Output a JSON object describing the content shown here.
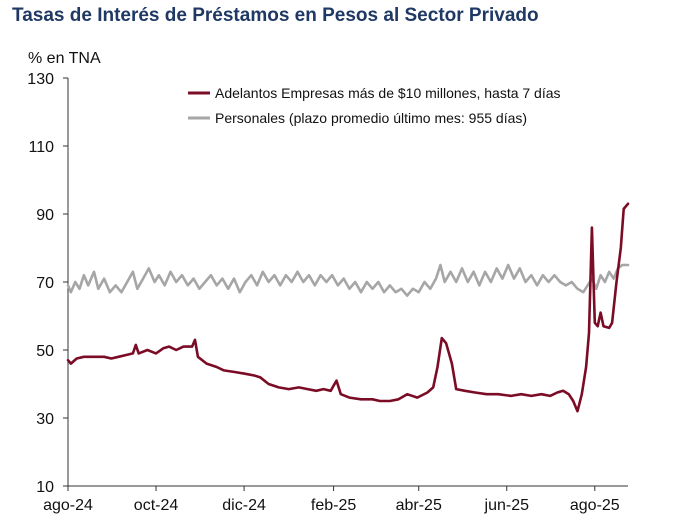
{
  "chart_data": {
    "type": "line",
    "title": "Tasas de Interés de Préstamos en Pesos al Sector Privado",
    "ylabel": "% en TNA",
    "ylim": [
      10,
      130
    ],
    "yticks": [
      10,
      30,
      50,
      70,
      90,
      110,
      130
    ],
    "xticks": [
      "ago-24",
      "oct-24",
      "dic-24",
      "feb-25",
      "abr-25",
      "jun-25",
      "ago-25"
    ],
    "legend_position": "top-right",
    "grid": false,
    "series": [
      {
        "name": "Adelantos Empresas más de $10 millones, hasta 7 días",
        "color": "#7b0c25",
        "points": [
          [
            "2024-08-01",
            47
          ],
          [
            "2024-08-03",
            46
          ],
          [
            "2024-08-07",
            47.5
          ],
          [
            "2024-08-12",
            48
          ],
          [
            "2024-08-19",
            48
          ],
          [
            "2024-08-26",
            48
          ],
          [
            "2024-08-31",
            47.5
          ],
          [
            "2024-09-05",
            48
          ],
          [
            "2024-09-10",
            48.5
          ],
          [
            "2024-09-15",
            49
          ],
          [
            "2024-09-17",
            51.5
          ],
          [
            "2024-09-19",
            49
          ],
          [
            "2024-09-25",
            50
          ],
          [
            "2024-10-01",
            49
          ],
          [
            "2024-10-06",
            50.5
          ],
          [
            "2024-10-10",
            51
          ],
          [
            "2024-10-15",
            50
          ],
          [
            "2024-10-20",
            51
          ],
          [
            "2024-10-26",
            51
          ],
          [
            "2024-10-28",
            53
          ],
          [
            "2024-10-30",
            48
          ],
          [
            "2024-11-05",
            46
          ],
          [
            "2024-11-12",
            45
          ],
          [
            "2024-11-17",
            44
          ],
          [
            "2024-11-25",
            43.5
          ],
          [
            "2024-12-02",
            43
          ],
          [
            "2024-12-08",
            42.5
          ],
          [
            "2024-12-12",
            42
          ],
          [
            "2024-12-18",
            40
          ],
          [
            "2024-12-25",
            39
          ],
          [
            "2025-01-01",
            38.5
          ],
          [
            "2025-01-08",
            39
          ],
          [
            "2025-01-14",
            38.5
          ],
          [
            "2025-01-20",
            38
          ],
          [
            "2025-01-25",
            38.5
          ],
          [
            "2025-01-30",
            38
          ],
          [
            "2025-02-03",
            41
          ],
          [
            "2025-02-06",
            37
          ],
          [
            "2025-02-12",
            36
          ],
          [
            "2025-02-20",
            35.5
          ],
          [
            "2025-02-28",
            35.5
          ],
          [
            "2025-03-05",
            35
          ],
          [
            "2025-03-12",
            35
          ],
          [
            "2025-03-18",
            35.5
          ],
          [
            "2025-03-24",
            37
          ],
          [
            "2025-03-31",
            36
          ],
          [
            "2025-04-07",
            37.5
          ],
          [
            "2025-04-11",
            39
          ],
          [
            "2025-04-14",
            45
          ],
          [
            "2025-04-17",
            53.5
          ],
          [
            "2025-04-20",
            52
          ],
          [
            "2025-04-24",
            46
          ],
          [
            "2025-04-27",
            38.5
          ],
          [
            "2025-05-03",
            38
          ],
          [
            "2025-05-10",
            37.5
          ],
          [
            "2025-05-18",
            37
          ],
          [
            "2025-05-26",
            37
          ],
          [
            "2025-06-04",
            36.5
          ],
          [
            "2025-06-11",
            37
          ],
          [
            "2025-06-18",
            36.5
          ],
          [
            "2025-06-25",
            37
          ],
          [
            "2025-07-01",
            36.5
          ],
          [
            "2025-07-06",
            37.5
          ],
          [
            "2025-07-10",
            38
          ],
          [
            "2025-07-14",
            37
          ],
          [
            "2025-07-17",
            35
          ],
          [
            "2025-07-20",
            32
          ],
          [
            "2025-07-23",
            37
          ],
          [
            "2025-07-26",
            45
          ],
          [
            "2025-07-28",
            55
          ],
          [
            "2025-07-30",
            86
          ],
          [
            "2025-08-01",
            58
          ],
          [
            "2025-08-03",
            57
          ],
          [
            "2025-08-05",
            61
          ],
          [
            "2025-08-07",
            57
          ],
          [
            "2025-08-11",
            56.5
          ],
          [
            "2025-08-13",
            58
          ],
          [
            "2025-08-16",
            70
          ],
          [
            "2025-08-19",
            80
          ],
          [
            "2025-08-21",
            91.5
          ],
          [
            "2025-08-24",
            93
          ]
        ]
      },
      {
        "name": "Personales (plazo promedio último mes: 955 días)",
        "color": "#a6a6a6",
        "points": [
          [
            "2024-08-01",
            69
          ],
          [
            "2024-08-03",
            67
          ],
          [
            "2024-08-06",
            70
          ],
          [
            "2024-08-09",
            68
          ],
          [
            "2024-08-12",
            72
          ],
          [
            "2024-08-15",
            69
          ],
          [
            "2024-08-19",
            73
          ],
          [
            "2024-08-22",
            68
          ],
          [
            "2024-08-26",
            71
          ],
          [
            "2024-08-30",
            67
          ],
          [
            "2024-09-03",
            69
          ],
          [
            "2024-09-07",
            67
          ],
          [
            "2024-09-11",
            70
          ],
          [
            "2024-09-15",
            73
          ],
          [
            "2024-09-18",
            68
          ],
          [
            "2024-09-22",
            71
          ],
          [
            "2024-09-26",
            74
          ],
          [
            "2024-09-30",
            70
          ],
          [
            "2024-10-03",
            72
          ],
          [
            "2024-10-07",
            69
          ],
          [
            "2024-10-11",
            73
          ],
          [
            "2024-10-15",
            70
          ],
          [
            "2024-10-19",
            72
          ],
          [
            "2024-10-23",
            69
          ],
          [
            "2024-10-27",
            71
          ],
          [
            "2024-10-31",
            68
          ],
          [
            "2024-11-04",
            70
          ],
          [
            "2024-11-08",
            72
          ],
          [
            "2024-11-12",
            69
          ],
          [
            "2024-11-16",
            71
          ],
          [
            "2024-11-20",
            68
          ],
          [
            "2024-11-24",
            71
          ],
          [
            "2024-11-28",
            67
          ],
          [
            "2024-12-02",
            70
          ],
          [
            "2024-12-06",
            72
          ],
          [
            "2024-12-10",
            69
          ],
          [
            "2024-12-14",
            73
          ],
          [
            "2024-12-18",
            70
          ],
          [
            "2024-12-22",
            72
          ],
          [
            "2024-12-26",
            69
          ],
          [
            "2024-12-30",
            72
          ],
          [
            "2025-01-03",
            70
          ],
          [
            "2025-01-07",
            73
          ],
          [
            "2025-01-11",
            70
          ],
          [
            "2025-01-15",
            72
          ],
          [
            "2025-01-19",
            69
          ],
          [
            "2025-01-23",
            72
          ],
          [
            "2025-01-27",
            70
          ],
          [
            "2025-01-31",
            72
          ],
          [
            "2025-02-04",
            69
          ],
          [
            "2025-02-08",
            71
          ],
          [
            "2025-02-12",
            68
          ],
          [
            "2025-02-16",
            70
          ],
          [
            "2025-02-20",
            67
          ],
          [
            "2025-02-24",
            70
          ],
          [
            "2025-02-28",
            68
          ],
          [
            "2025-03-04",
            70
          ],
          [
            "2025-03-08",
            67
          ],
          [
            "2025-03-12",
            69
          ],
          [
            "2025-03-16",
            67
          ],
          [
            "2025-03-20",
            68
          ],
          [
            "2025-03-24",
            66
          ],
          [
            "2025-03-28",
            68
          ],
          [
            "2025-04-01",
            67
          ],
          [
            "2025-04-05",
            70
          ],
          [
            "2025-04-09",
            68
          ],
          [
            "2025-04-13",
            71
          ],
          [
            "2025-04-16",
            75
          ],
          [
            "2025-04-19",
            70
          ],
          [
            "2025-04-23",
            73
          ],
          [
            "2025-04-27",
            70
          ],
          [
            "2025-05-01",
            74
          ],
          [
            "2025-05-05",
            70
          ],
          [
            "2025-05-09",
            73
          ],
          [
            "2025-05-13",
            69
          ],
          [
            "2025-05-17",
            73
          ],
          [
            "2025-05-21",
            70
          ],
          [
            "2025-05-25",
            74
          ],
          [
            "2025-05-29",
            71
          ],
          [
            "2025-06-02",
            75
          ],
          [
            "2025-06-06",
            71
          ],
          [
            "2025-06-10",
            74
          ],
          [
            "2025-06-14",
            70
          ],
          [
            "2025-06-18",
            72
          ],
          [
            "2025-06-22",
            69
          ],
          [
            "2025-06-26",
            72
          ],
          [
            "2025-06-30",
            70
          ],
          [
            "2025-07-04",
            72
          ],
          [
            "2025-07-08",
            70
          ],
          [
            "2025-07-12",
            69
          ],
          [
            "2025-07-16",
            70
          ],
          [
            "2025-07-20",
            68
          ],
          [
            "2025-07-24",
            67
          ],
          [
            "2025-07-27",
            69
          ],
          [
            "2025-07-30",
            71
          ],
          [
            "2025-08-02",
            68
          ],
          [
            "2025-08-05",
            72
          ],
          [
            "2025-08-08",
            70
          ],
          [
            "2025-08-11",
            73
          ],
          [
            "2025-08-14",
            71
          ],
          [
            "2025-08-17",
            74
          ],
          [
            "2025-08-20",
            75
          ],
          [
            "2025-08-24",
            75
          ]
        ]
      }
    ]
  }
}
